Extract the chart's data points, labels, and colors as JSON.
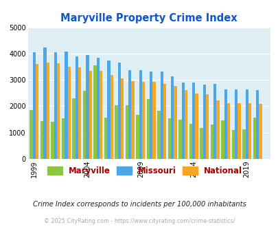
{
  "title": "Maryville Property Crime Index",
  "subtitle": "Crime Index corresponds to incidents per 100,000 inhabitants",
  "copyright": "© 2025 CityRating.com - https://www.cityrating.com/crime-statistics/",
  "years": [
    1999,
    2000,
    2001,
    2002,
    2003,
    2004,
    2005,
    2006,
    2007,
    2008,
    2009,
    2010,
    2011,
    2012,
    2013,
    2014,
    2015,
    2016,
    2017,
    2018,
    2019,
    2020
  ],
  "maryville": [
    1850,
    1430,
    1400,
    1540,
    2300,
    2580,
    3540,
    1580,
    2050,
    2050,
    1680,
    2270,
    1840,
    1530,
    1500,
    1330,
    1170,
    1300,
    1460,
    1110,
    1120,
    1570
  ],
  "missouri": [
    4050,
    4240,
    4050,
    4080,
    3900,
    3940,
    3840,
    3740,
    3670,
    3380,
    3380,
    3330,
    3310,
    3140,
    2910,
    2910,
    2820,
    2840,
    2640,
    2640,
    2640,
    2610
  ],
  "national": [
    3600,
    3670,
    3620,
    3490,
    3480,
    3340,
    3350,
    3200,
    3050,
    2960,
    2920,
    2920,
    2860,
    2760,
    2610,
    2490,
    2450,
    2220,
    2110,
    2110,
    2110,
    2080
  ],
  "color_maryville": "#8dc63f",
  "color_missouri": "#4da6e8",
  "color_national": "#f5a623",
  "bg_color": "#deeef5",
  "ylim": [
    0,
    5000
  ],
  "yticks": [
    0,
    1000,
    2000,
    3000,
    4000,
    5000
  ],
  "xlabel_years": [
    1999,
    2004,
    2009,
    2014,
    2019
  ],
  "title_color": "#1155cc",
  "subtitle_color": "#222222",
  "copyright_color": "#aaaaaa",
  "legend_label_color": "#aa0000",
  "bar_width": 0.28,
  "tick_label_size": 7,
  "title_fontsize": 10.5
}
